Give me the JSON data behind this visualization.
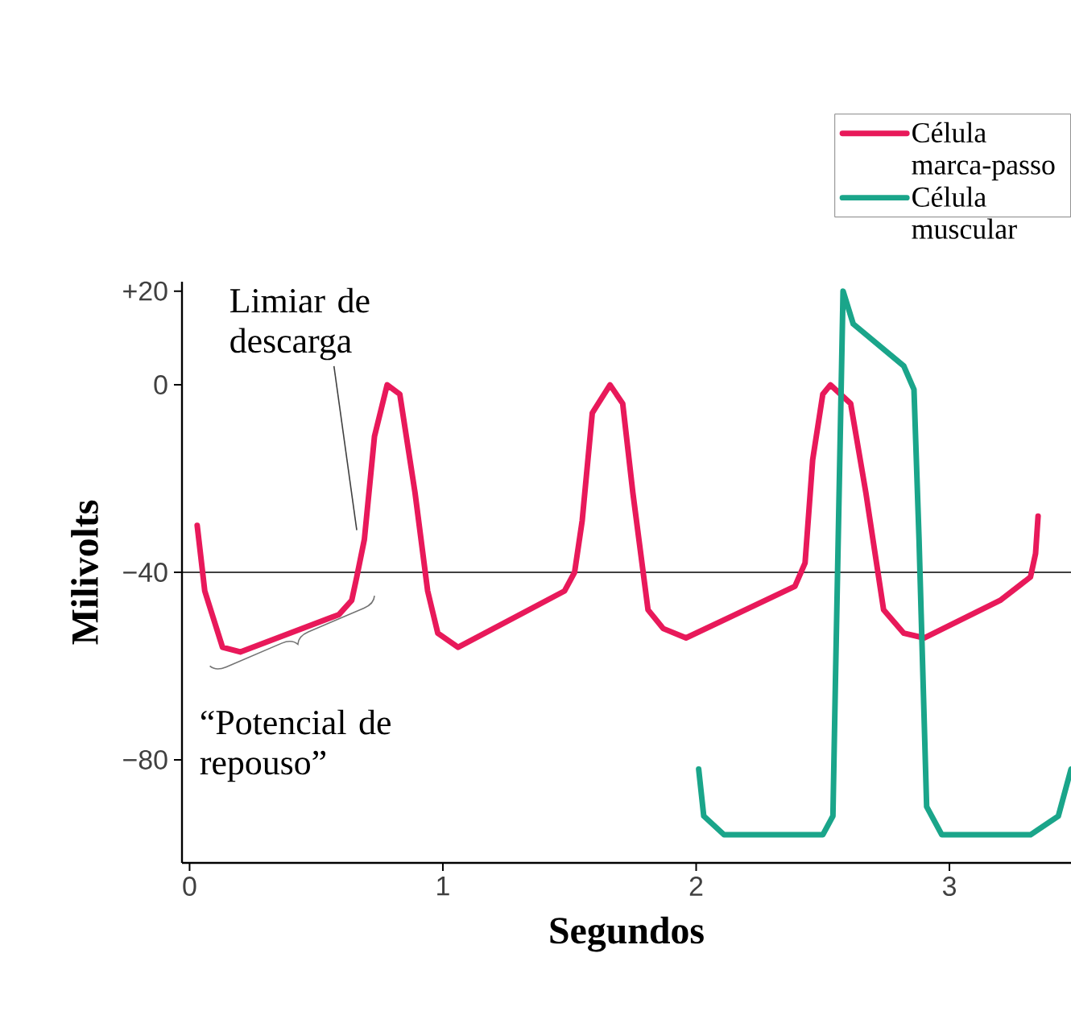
{
  "chart_data": {
    "type": "line",
    "xlabel": "Segundos",
    "ylabel": "Milivolts",
    "xlim": [
      -0.03,
      3.48
    ],
    "ylim": [
      -102,
      22
    ],
    "xticks": [
      0,
      1,
      2,
      3
    ],
    "yticks": [
      {
        "value": 20,
        "label": "+20"
      },
      0,
      {
        "value": -40,
        "label": "−40"
      },
      {
        "value": -80,
        "label": "−80"
      }
    ],
    "legend": "top right",
    "line_style": "solid",
    "ref_lines": [
      {
        "axis": "y",
        "value": -40,
        "color": "#000000"
      }
    ],
    "annotations": [
      {
        "text": "Limiar de descarga",
        "x": 0.66,
        "y": -31
      },
      "“Potencial de repouso”"
    ],
    "series": [
      {
        "name": "Célula marca-passo",
        "color": "#e8195a",
        "x": [
          0.03,
          0.06,
          0.13,
          0.2,
          0.59,
          0.64,
          0.66,
          0.69,
          0.73,
          0.78,
          0.83,
          0.89,
          0.94,
          0.98,
          1.06,
          1.48,
          1.52,
          1.55,
          1.59,
          1.66,
          1.71,
          1.75,
          1.81,
          1.87,
          1.96,
          2.39,
          2.43,
          2.46,
          2.5,
          2.53,
          2.61,
          2.67,
          2.74,
          2.82,
          2.9,
          3.2,
          3.32,
          3.34,
          3.35
        ],
        "values": [
          -30,
          -44,
          -56,
          -57,
          -49,
          -46,
          -41,
          -33,
          -11,
          0,
          -2,
          -23,
          -44,
          -53,
          -56,
          -44,
          -40,
          -29,
          -6,
          0,
          -4,
          -23,
          -48,
          -52,
          -54,
          -43,
          -38,
          -16,
          -2,
          0,
          -4,
          -23,
          -48,
          -53,
          -54,
          -46,
          -41,
          -36,
          -28
        ]
      },
      {
        "name": "Célula muscular",
        "color": "#1aa58a",
        "x": [
          2.01,
          2.03,
          2.11,
          2.5,
          2.54,
          2.55,
          2.58,
          2.62,
          2.82,
          2.86,
          2.88,
          2.91,
          2.97,
          3.32,
          3.43,
          3.48
        ],
        "values": [
          -82,
          -92,
          -96,
          -96,
          -92,
          -63,
          20,
          13,
          4,
          -1,
          -33,
          -90,
          -96,
          -96,
          -92,
          -82
        ]
      }
    ]
  }
}
